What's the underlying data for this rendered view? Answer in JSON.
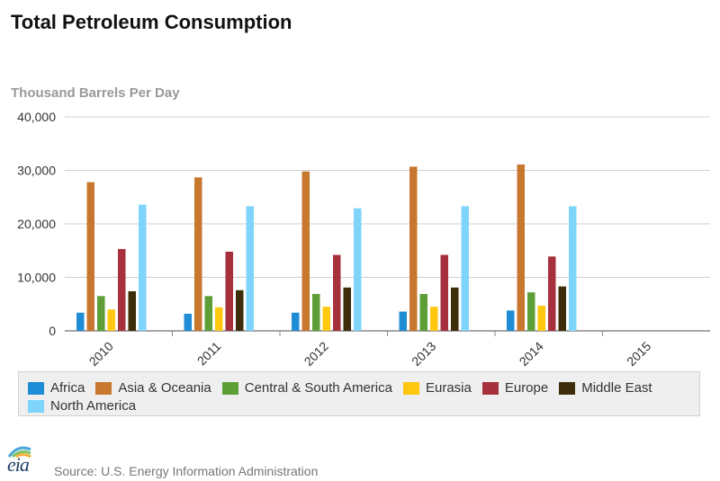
{
  "title": "Total Petroleum Consumption",
  "source_text": "Source: U.S. Energy Information Administration",
  "logo_text": "eia",
  "chart_data": {
    "type": "bar",
    "title": "Total Petroleum Consumption",
    "ylabel": "Thousand Barrels Per Day",
    "xlabel": "",
    "ylim": [
      0,
      40000
    ],
    "yticks": [
      "0",
      "10,000",
      "20,000",
      "30,000",
      "40,000"
    ],
    "grid": true,
    "legend_position": "bottom",
    "categories": [
      "2010",
      "2011",
      "2012",
      "2013",
      "2014",
      "2015"
    ],
    "series": [
      {
        "name": "Africa",
        "color": "#1f8dd6",
        "values": [
          3400,
          3200,
          3400,
          3600,
          3800,
          0
        ]
      },
      {
        "name": "Asia & Oceania",
        "color": "#c8782e",
        "values": [
          27800,
          28700,
          29800,
          30700,
          31100,
          0
        ]
      },
      {
        "name": "Central & South America",
        "color": "#5e9e37",
        "values": [
          6500,
          6500,
          6900,
          6900,
          7200,
          0
        ]
      },
      {
        "name": "Eurasia",
        "color": "#ffc70d",
        "values": [
          4000,
          4400,
          4500,
          4500,
          4700,
          0
        ]
      },
      {
        "name": "Europe",
        "color": "#a6313d",
        "values": [
          15300,
          14800,
          14200,
          14200,
          13900,
          0
        ]
      },
      {
        "name": "Middle East",
        "color": "#3e2d0a",
        "values": [
          7400,
          7600,
          8100,
          8100,
          8300,
          0
        ]
      },
      {
        "name": "North America",
        "color": "#7fd4fb",
        "values": [
          23600,
          23300,
          22900,
          23300,
          23300,
          0
        ]
      }
    ]
  }
}
